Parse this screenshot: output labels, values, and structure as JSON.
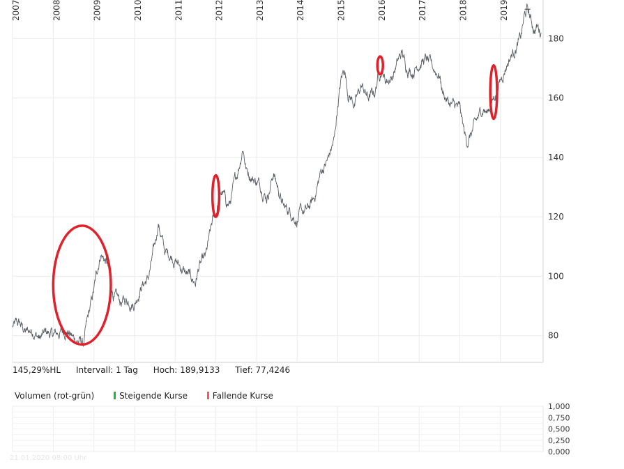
{
  "chart_data": [
    {
      "type": "line",
      "subtype": "price",
      "series": [
        {
          "color": "#5a5f66",
          "points": [
            [
              "2007-01",
              83
            ],
            [
              "2007-03",
              84
            ],
            [
              "2007-05",
              81
            ],
            [
              "2007-07",
              82
            ],
            [
              "2007-09",
              79
            ],
            [
              "2007-11",
              81
            ],
            [
              "2008-01",
              80
            ],
            [
              "2008-03",
              81
            ],
            [
              "2008-05",
              82
            ],
            [
              "2008-07",
              79
            ],
            [
              "2008-09",
              78
            ],
            [
              "2008-10",
              77.4
            ],
            [
              "2008-11",
              84
            ],
            [
              "2009-01",
              95
            ],
            [
              "2009-02",
              102
            ],
            [
              "2009-03",
              108
            ],
            [
              "2009-04",
              106
            ],
            [
              "2009-05",
              104
            ],
            [
              "2009-06",
              97
            ],
            [
              "2009-07",
              93
            ],
            [
              "2009-09",
              91
            ],
            [
              "2009-11",
              92
            ],
            [
              "2010-01",
              91
            ],
            [
              "2010-03",
              97
            ],
            [
              "2010-05",
              99
            ],
            [
              "2010-07",
              110
            ],
            [
              "2010-08",
              118
            ],
            [
              "2010-09",
              113
            ],
            [
              "2010-10",
              108
            ],
            [
              "2010-12",
              107
            ],
            [
              "2011-02",
              104
            ],
            [
              "2011-04",
              101
            ],
            [
              "2011-05",
              100
            ],
            [
              "2011-07",
              98
            ],
            [
              "2011-08",
              103
            ],
            [
              "2011-10",
              106
            ],
            [
              "2011-12",
              118
            ],
            [
              "2012-01",
              121
            ],
            [
              "2012-02",
              127
            ],
            [
              "2012-03",
              128
            ],
            [
              "2012-04",
              125
            ],
            [
              "2012-05",
              124
            ],
            [
              "2012-07",
              133
            ],
            [
              "2012-08",
              138
            ],
            [
              "2012-09",
              144
            ],
            [
              "2012-10",
              136
            ],
            [
              "2012-12",
              133
            ],
            [
              "2013-02",
              131
            ],
            [
              "2013-04",
              127
            ],
            [
              "2013-05",
              130
            ],
            [
              "2013-06",
              135
            ],
            [
              "2013-07",
              131
            ],
            [
              "2013-09",
              123
            ],
            [
              "2013-11",
              122
            ],
            [
              "2014-01",
              119
            ],
            [
              "2014-02",
              121
            ],
            [
              "2014-04",
              122
            ],
            [
              "2014-06",
              126
            ],
            [
              "2014-08",
              135
            ],
            [
              "2014-10",
              139
            ],
            [
              "2014-12",
              146
            ],
            [
              "2015-01",
              158
            ],
            [
              "2015-02",
              166
            ],
            [
              "2015-03",
              170
            ],
            [
              "2015-04",
              162
            ],
            [
              "2015-06",
              158
            ],
            [
              "2015-08",
              164
            ],
            [
              "2015-10",
              160
            ],
            [
              "2015-12",
              162
            ],
            [
              "2016-01",
              168
            ],
            [
              "2016-02",
              170
            ],
            [
              "2016-03",
              166
            ],
            [
              "2016-05",
              167
            ],
            [
              "2016-07",
              173
            ],
            [
              "2016-08",
              175
            ],
            [
              "2016-09",
              171
            ],
            [
              "2016-11",
              169
            ],
            [
              "2017-01",
              172
            ],
            [
              "2017-03",
              173
            ],
            [
              "2017-05",
              170
            ],
            [
              "2017-07",
              168
            ],
            [
              "2017-08",
              162
            ],
            [
              "2017-10",
              158
            ],
            [
              "2017-12",
              157
            ],
            [
              "2018-01",
              156
            ],
            [
              "2018-02",
              150
            ],
            [
              "2018-03",
              145
            ],
            [
              "2018-04",
              147
            ],
            [
              "2018-06",
              152
            ],
            [
              "2018-08",
              157
            ],
            [
              "2018-09",
              155
            ],
            [
              "2018-11",
              160
            ],
            [
              "2019-01",
              166
            ],
            [
              "2019-03",
              172
            ],
            [
              "2019-05",
              176
            ],
            [
              "2019-07",
              180
            ],
            [
              "2019-08",
              187
            ],
            [
              "2019-09",
              189.9
            ],
            [
              "2019-10",
              186
            ],
            [
              "2019-11",
              183
            ],
            [
              "2019-12",
              184
            ],
            [
              "2020-01",
              182
            ]
          ]
        }
      ],
      "x_ticks": [
        "2007",
        "2008",
        "2009",
        "2010",
        "2011",
        "2012",
        "2013",
        "2014",
        "2015",
        "2016",
        "2017",
        "2018",
        "2019"
      ],
      "y_ticks": [
        80,
        100,
        120,
        140,
        160,
        180
      ],
      "ylim": [
        71,
        193
      ],
      "annotations": [
        {
          "shape": "ellipse",
          "color": "#e0202a",
          "center": [
            "2008-09",
            97
          ],
          "span_x": [
            "2008-01",
            "2009-06"
          ],
          "span_y": [
            77,
            117
          ]
        },
        {
          "shape": "ellipse",
          "color": "#e0202a",
          "center": [
            "2012-01",
            127
          ],
          "span_x": [
            "2011-12",
            "2012-02"
          ],
          "span_y": [
            120,
            134
          ]
        },
        {
          "shape": "ellipse",
          "color": "#e0202a",
          "center": [
            "2016-01",
            171
          ],
          "span_x": [
            "2016-01",
            "2016-02"
          ],
          "span_y": [
            168,
            174
          ]
        },
        {
          "shape": "ellipse",
          "color": "#e0202a",
          "center": [
            "2018-11",
            162
          ],
          "span_x": [
            "2018-10",
            "2018-12"
          ],
          "span_y": [
            153,
            171
          ]
        }
      ]
    },
    {
      "type": "bar",
      "subtype": "volume",
      "title": "Volumen (rot-grün)",
      "y_ticks": [
        "1,000",
        "0,750",
        "0,500",
        "0,250",
        "0,000"
      ],
      "ylim": [
        0,
        1
      ],
      "legend": [
        {
          "label": "Steigende Kurse",
          "color": "#1fb53a"
        },
        {
          "label": "Fallende Kurse",
          "color": "#ef5a6a"
        }
      ]
    }
  ],
  "info": {
    "percent_hl": "145,29%HL",
    "interval": "Intervall: 1 Tag",
    "high": "Hoch: 189,9133",
    "low": "Tief: 77,4246"
  },
  "timestamp": "21.01.2020 08:00 Uhr"
}
